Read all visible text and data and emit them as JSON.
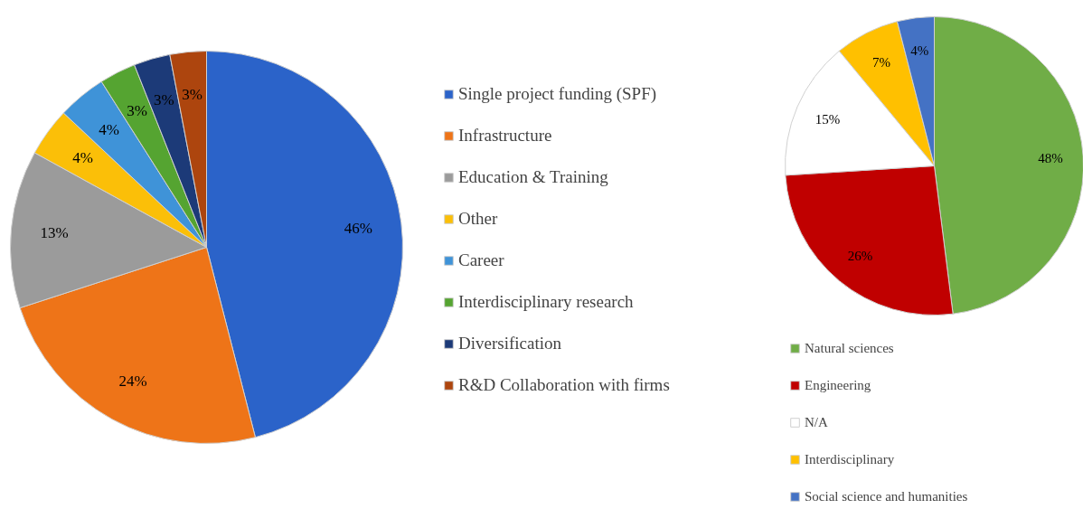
{
  "chart_data": [
    {
      "type": "pie",
      "categories": [
        "Single project funding (SPF)",
        "Infrastructure",
        "Education & Training",
        "Other",
        "Career",
        "Interdisciplinary research",
        "Diversification",
        "R&D Collaboration with firms"
      ],
      "values": [
        46,
        24,
        13,
        4,
        4,
        3,
        3,
        3
      ],
      "colors": [
        "#2b63c9",
        "#ee7418",
        "#9b9b9b",
        "#fbbf08",
        "#3f93d8",
        "#55a431",
        "#1c3a78",
        "#ad450e"
      ],
      "value_labels": [
        "46%",
        "24%",
        "13%",
        "4%",
        "4%",
        "3%",
        "3%",
        "3%"
      ],
      "legend": "right"
    },
    {
      "type": "pie",
      "categories": [
        "Natural sciences",
        "Engineering",
        "N/A",
        "Interdisciplinary",
        "Social science and humanities"
      ],
      "values": [
        48,
        26,
        15,
        7,
        4
      ],
      "colors": [
        "#70ad47",
        "#c00000",
        "#ffffff",
        "#ffc000",
        "#4472c4"
      ],
      "value_labels": [
        "48%",
        "26%",
        "15%",
        "7%",
        "4%"
      ],
      "legend": "bottom"
    }
  ]
}
